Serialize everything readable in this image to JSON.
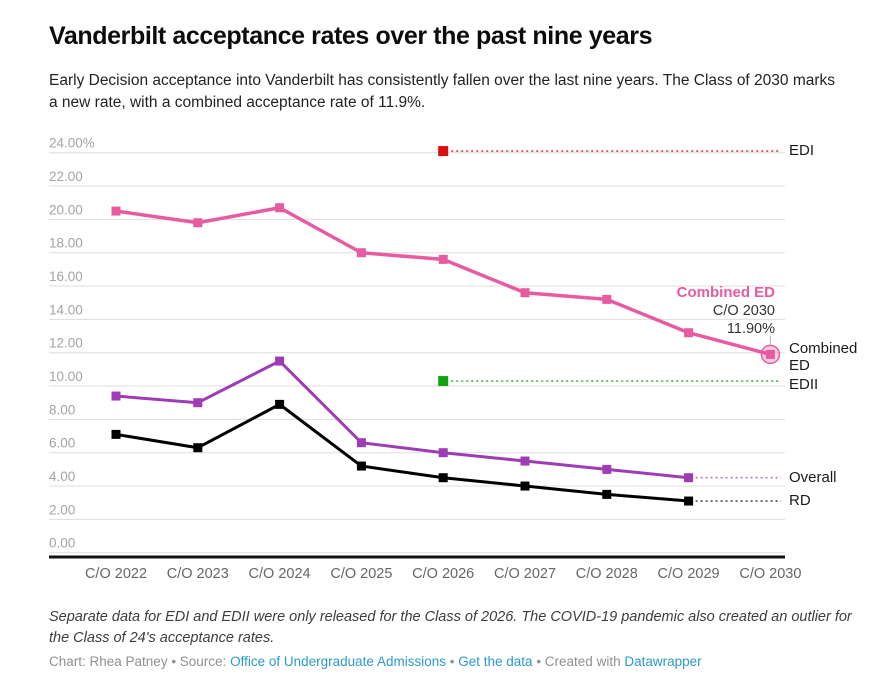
{
  "header": {
    "title": "Vanderbilt acceptance rates over the past nine years",
    "subtitle": "Early Decision acceptance into Vanderbilt has consistently fallen over the last nine years. The Class of 2030 marks a new rate, with a combined acceptance rate of 11.9%."
  },
  "chart_data": {
    "type": "line",
    "categories": [
      "C/O 2022",
      "C/O 2023",
      "C/O 2024",
      "C/O 2025",
      "C/O 2026",
      "C/O 2027",
      "C/O 2028",
      "C/O 2029",
      "C/O 2030"
    ],
    "ylim": [
      0,
      24
    ],
    "y_tick_step": 2,
    "y_tick_labels": [
      "0.00",
      "2.00",
      "4.00",
      "6.00",
      "8.00",
      "10.00",
      "12.00",
      "14.00",
      "16.00",
      "18.00",
      "20.00",
      "22.00",
      "24.00%"
    ],
    "grid": true,
    "legend_position": "right-edge-labels",
    "series": [
      {
        "id": "combined_ed",
        "name": "Combined ED",
        "color": "#e75ba0",
        "values": [
          20.5,
          19.8,
          20.7,
          18.0,
          17.6,
          15.6,
          15.2,
          13.2,
          11.9
        ],
        "highlight_last": true
      },
      {
        "id": "overall",
        "name": "Overall",
        "color": "#9d3cb5",
        "values": [
          9.4,
          9.0,
          11.5,
          6.6,
          6.0,
          5.5,
          5.0,
          4.5
        ],
        "dotted_to_label": true
      },
      {
        "id": "rd",
        "name": "RD",
        "color": "#000000",
        "values": [
          7.1,
          6.3,
          8.9,
          5.2,
          4.5,
          4.0,
          3.5,
          3.1
        ],
        "dotted_to_label": true
      },
      {
        "id": "edi",
        "name": "EDI",
        "color": "#dc0d0d",
        "point": {
          "x_index": 4,
          "value": 24.1
        },
        "dotted_to_label": true
      },
      {
        "id": "edii",
        "name": "EDII",
        "color": "#12a312",
        "point": {
          "x_index": 4,
          "value": 10.3
        },
        "dotted_to_label": true
      }
    ],
    "annotation": {
      "series_label": "Combined ED",
      "point_label_line1": "C/O 2030",
      "point_label_line2": "11.90%"
    },
    "right_labels": {
      "edi": "EDI",
      "combined": "Combined ED",
      "edii": "EDII",
      "overall": "Overall",
      "rd": "RD"
    }
  },
  "footnote": "Separate data for EDI and EDII were only released for the Class of 2026. The COVID-19 pandemic also created an outlier for the Class of 24's acceptance rates.",
  "credit": {
    "prefix": "Chart: Rhea Patney • Source:",
    "source_label": "Office of Undergraduate Admissions",
    "sep1": "•",
    "data_label": "Get the data",
    "sep2": "• Created with",
    "tool_label": "Datawrapper"
  }
}
